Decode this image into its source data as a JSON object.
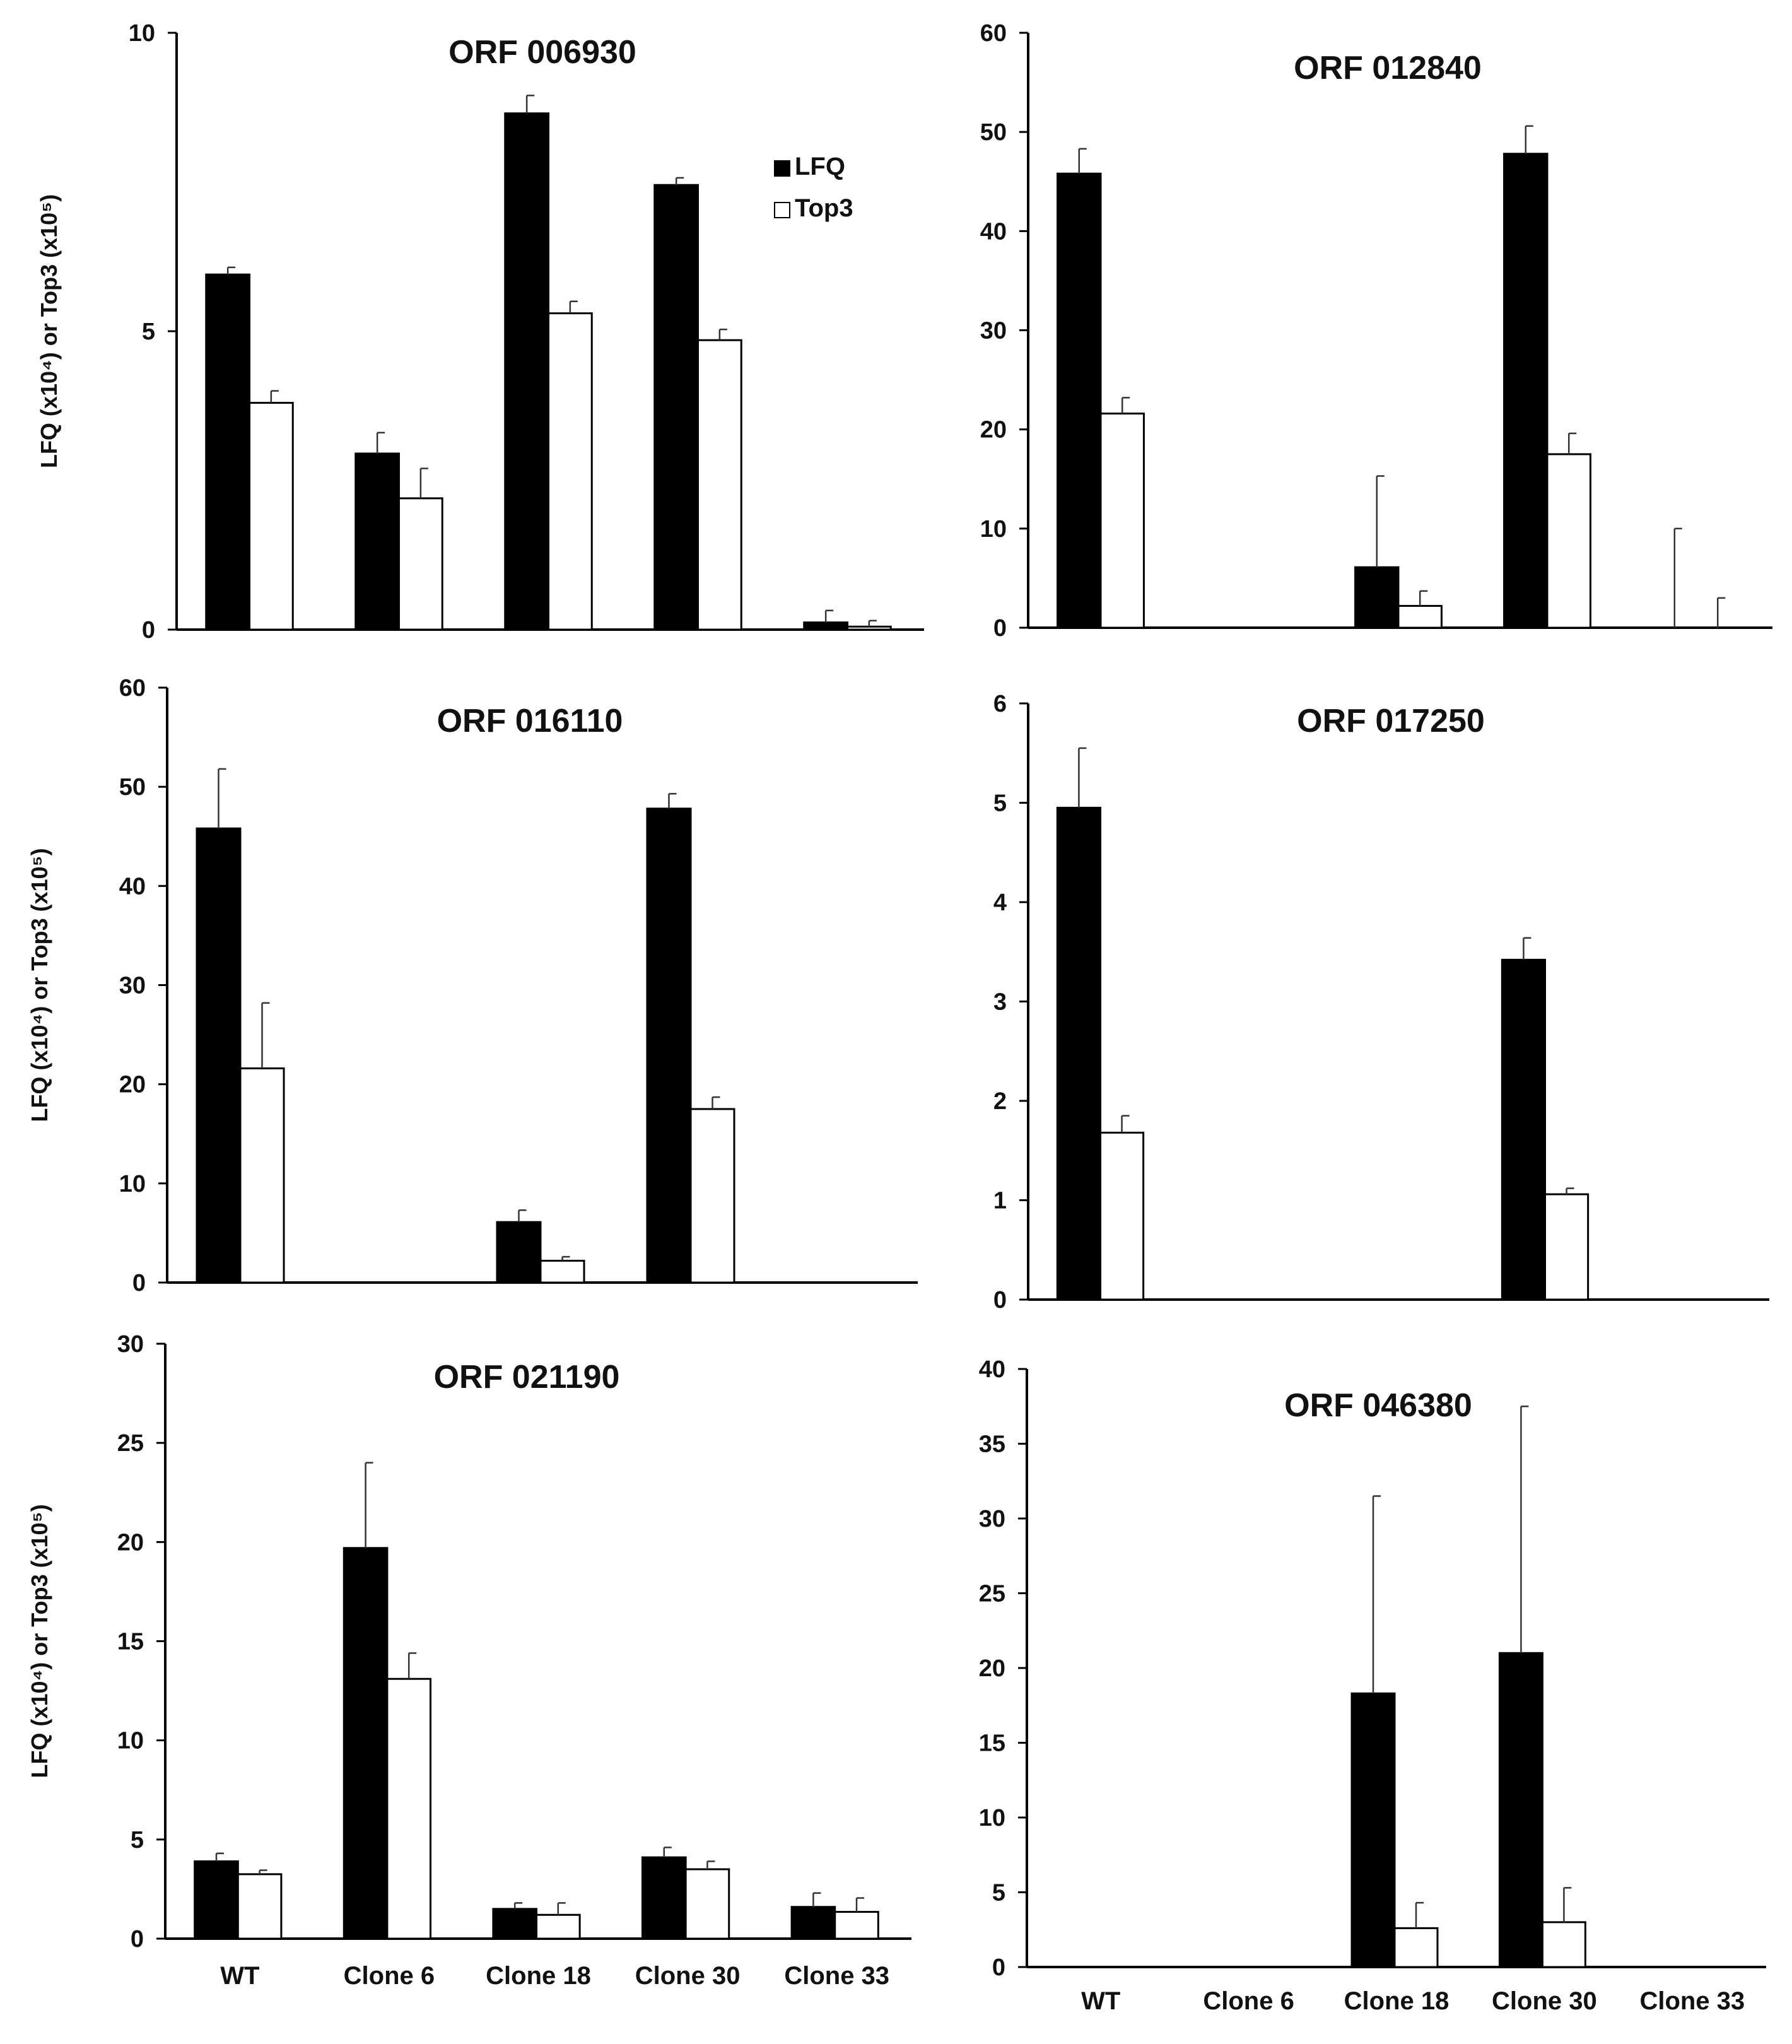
{
  "figure": {
    "ylabel": "LFQ (x10⁴) or Top3 (x10⁵)"
  },
  "legend": [
    {
      "name": "LFQ",
      "color": "#000000"
    },
    {
      "name": "Top3",
      "color": "#ffffff"
    }
  ],
  "categories": [
    "WT",
    "Clone 6",
    "Clone 18",
    "Clone 30",
    "Clone 33"
  ],
  "chart_data": [
    {
      "type": "bar",
      "title": "ORF 006930",
      "ylabel": "LFQ (x10⁴) or Top3 (x10⁵)",
      "ylim": [
        0,
        10
      ],
      "yticks": [
        0,
        5,
        10
      ],
      "legend_position": "top-right",
      "series": [
        {
          "name": "LFQ",
          "values": [
            5.95,
            2.95,
            8.65,
            7.45,
            0.12
          ],
          "errors": [
            0.12,
            0.35,
            0.3,
            0.12,
            0.2
          ]
        },
        {
          "name": "Top3",
          "values": [
            3.8,
            2.2,
            5.3,
            4.85,
            0.05
          ],
          "errors": [
            0.2,
            0.5,
            0.2,
            0.18,
            0.1
          ]
        }
      ]
    },
    {
      "type": "bar",
      "title": "ORF 012840",
      "ylabel": "",
      "ylim": [
        0,
        60
      ],
      "yticks": [
        0,
        10,
        20,
        30,
        40,
        50,
        60
      ],
      "series": [
        {
          "name": "LFQ",
          "values": [
            45.8,
            0,
            6.1,
            47.8,
            0
          ],
          "errors": [
            2.5,
            0,
            9.2,
            2.8,
            10
          ]
        },
        {
          "name": "Top3",
          "values": [
            21.6,
            0,
            2.2,
            17.5,
            0
          ],
          "errors": [
            1.6,
            0,
            1.5,
            2.1,
            3
          ]
        }
      ]
    },
    {
      "type": "bar",
      "title": "ORF 016110",
      "ylabel": "LFQ (x10⁴) or Top3 (x10⁵)",
      "ylim": [
        0,
        60
      ],
      "yticks": [
        0,
        10,
        20,
        30,
        40,
        50,
        60
      ],
      "series": [
        {
          "name": "LFQ",
          "values": [
            45.8,
            0,
            6.1,
            47.8,
            0
          ],
          "errors": [
            6.0,
            0,
            1.2,
            1.5,
            0
          ]
        },
        {
          "name": "Top3",
          "values": [
            21.6,
            0,
            2.2,
            17.5,
            0
          ],
          "errors": [
            6.6,
            0,
            0.4,
            1.2,
            0
          ]
        }
      ]
    },
    {
      "type": "bar",
      "title": "ORF 017250",
      "ylabel": "",
      "ylim": [
        0,
        6
      ],
      "yticks": [
        0,
        1,
        2,
        3,
        4,
        5,
        6
      ],
      "series": [
        {
          "name": "LFQ",
          "values": [
            4.95,
            0,
            0,
            3.42,
            0
          ],
          "errors": [
            0.6,
            0,
            0,
            0.22,
            0
          ]
        },
        {
          "name": "Top3",
          "values": [
            1.68,
            0,
            0,
            1.06,
            0
          ],
          "errors": [
            0.17,
            0,
            0,
            0.06,
            0
          ]
        }
      ]
    },
    {
      "type": "bar",
      "title": "ORF 021190",
      "ylabel": "LFQ (x10⁴) or Top3 (x10⁵)",
      "ylim": [
        0,
        30
      ],
      "yticks": [
        0,
        5,
        10,
        15,
        20,
        25,
        30
      ],
      "show_categories": true,
      "series": [
        {
          "name": "LFQ",
          "values": [
            3.9,
            19.7,
            1.5,
            4.1,
            1.6
          ],
          "errors": [
            0.4,
            4.3,
            0.3,
            0.5,
            0.7
          ]
        },
        {
          "name": "Top3",
          "values": [
            3.25,
            13.1,
            1.2,
            3.5,
            1.35
          ],
          "errors": [
            0.2,
            1.3,
            0.6,
            0.4,
            0.7
          ]
        }
      ]
    },
    {
      "type": "bar",
      "title": "ORF 046380",
      "ylabel": "",
      "ylim": [
        0,
        40
      ],
      "yticks": [
        0,
        5,
        10,
        15,
        20,
        25,
        30,
        35,
        40
      ],
      "show_categories": true,
      "series": [
        {
          "name": "LFQ",
          "values": [
            0,
            0,
            18.3,
            21.0,
            0
          ],
          "errors": [
            0,
            0,
            13.2,
            16.5,
            0
          ]
        },
        {
          "name": "Top3",
          "values": [
            0,
            0,
            2.6,
            3.0,
            0
          ],
          "errors": [
            0,
            0,
            1.7,
            2.3,
            0
          ]
        }
      ]
    }
  ]
}
